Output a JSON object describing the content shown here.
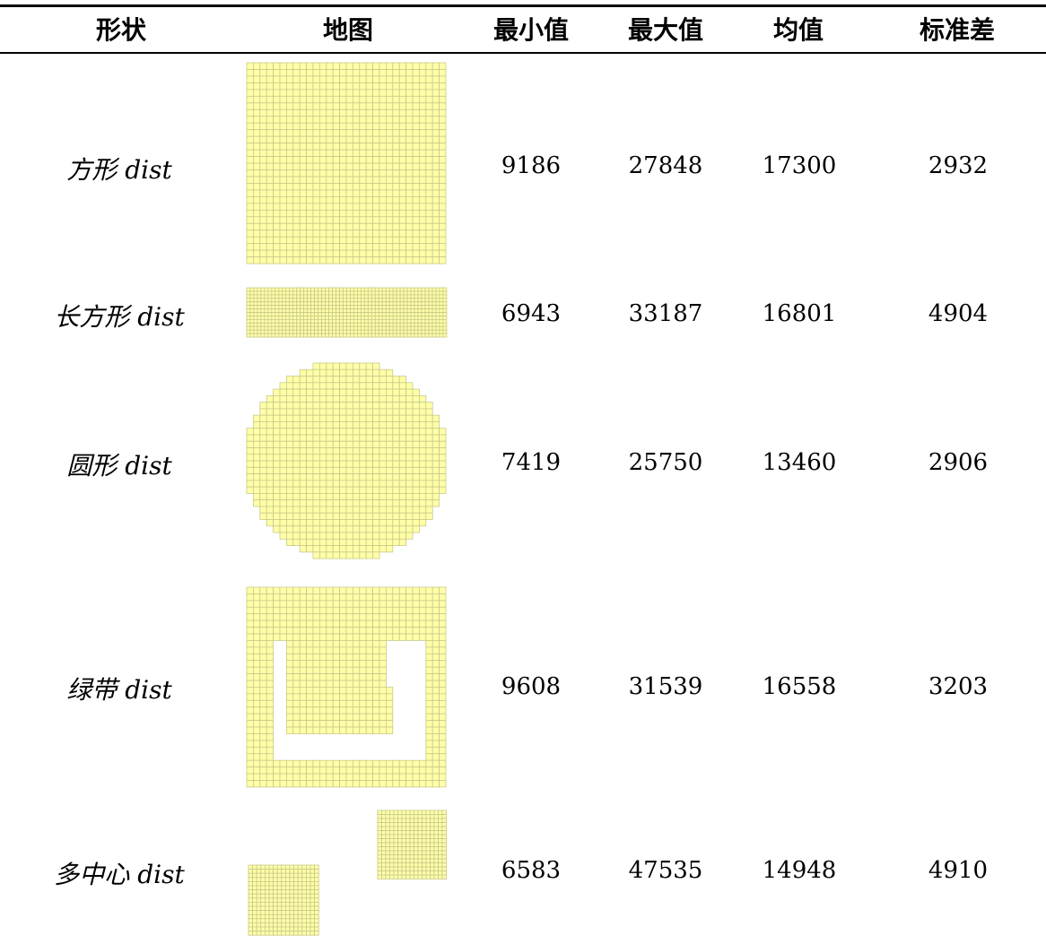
{
  "table": {
    "headers": {
      "shape": "形状",
      "map": "地图",
      "min": "最小值",
      "max": "最大值",
      "mean": "均值",
      "std": "标准差"
    },
    "rows": [
      {
        "shape": "方形 dist",
        "map_icon": "square-grid-map",
        "min": "9186",
        "max": "27848",
        "mean": "17300",
        "std": "2932"
      },
      {
        "shape": "长方形 dist",
        "map_icon": "rectangle-grid-map",
        "min": "6943",
        "max": "33187",
        "mean": "16801",
        "std": "4904"
      },
      {
        "shape": "圆形 dist",
        "map_icon": "circle-grid-map",
        "min": "7419",
        "max": "25750",
        "mean": "13460",
        "std": "2906"
      },
      {
        "shape": "绿带 dist",
        "map_icon": "greenbelt-grid-map",
        "min": "9608",
        "max": "31539",
        "mean": "16558",
        "std": "3203"
      },
      {
        "shape": "多中心 dist",
        "map_icon": "polycentric-grid-map",
        "min": "6583",
        "max": "47535",
        "mean": "14948",
        "std": "4910"
      }
    ]
  },
  "colors": {
    "cell_fill": "#ffffa8",
    "cell_stroke": "#c9c98a",
    "rule": "#000000"
  }
}
